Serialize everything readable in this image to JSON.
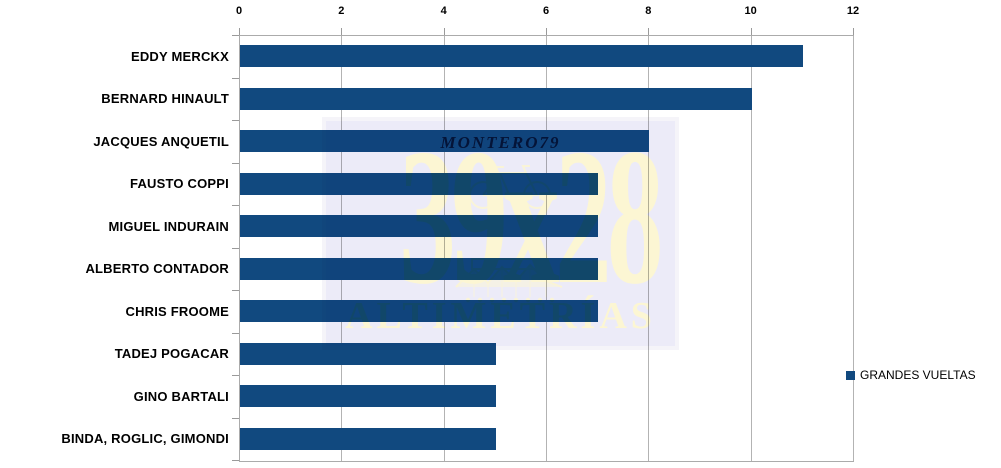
{
  "chart_data": {
    "type": "bar",
    "orientation": "horizontal",
    "title": "",
    "xlabel": "",
    "ylabel": "",
    "series_name": "GRANDES VUELTAS",
    "categories": [
      "EDDY MERCKX",
      "BERNARD HINAULT",
      "JACQUES ANQUETIL",
      "FAUSTO COPPI",
      "MIGUEL INDURAIN",
      "ALBERTO CONTADOR",
      "CHRIS FROOME",
      "TADEJ POGACAR",
      "GINO BARTALI",
      "BINDA, ROGLIC, GIMONDI"
    ],
    "values": [
      11,
      10,
      8,
      7,
      7,
      7,
      7,
      5,
      5,
      5
    ],
    "xlim": [
      0,
      12
    ],
    "x_ticks": [
      0,
      2,
      4,
      6,
      8,
      10,
      12
    ],
    "grid": true,
    "legend_position": "right"
  },
  "legend": {
    "label": "GRANDES VUELTAS"
  },
  "watermark": {
    "brand": "MONTERO79",
    "big_text": "39x28",
    "subtitle": "ALTIMETRÍAS"
  },
  "colors": {
    "bar": "#11497F",
    "gridline": "#B3B3B3",
    "axis": "#ABABAB",
    "watermark_bg": "#ECEBF8",
    "watermark_cream": "#FCF6D3",
    "watermark_navy": "#2E4470"
  }
}
